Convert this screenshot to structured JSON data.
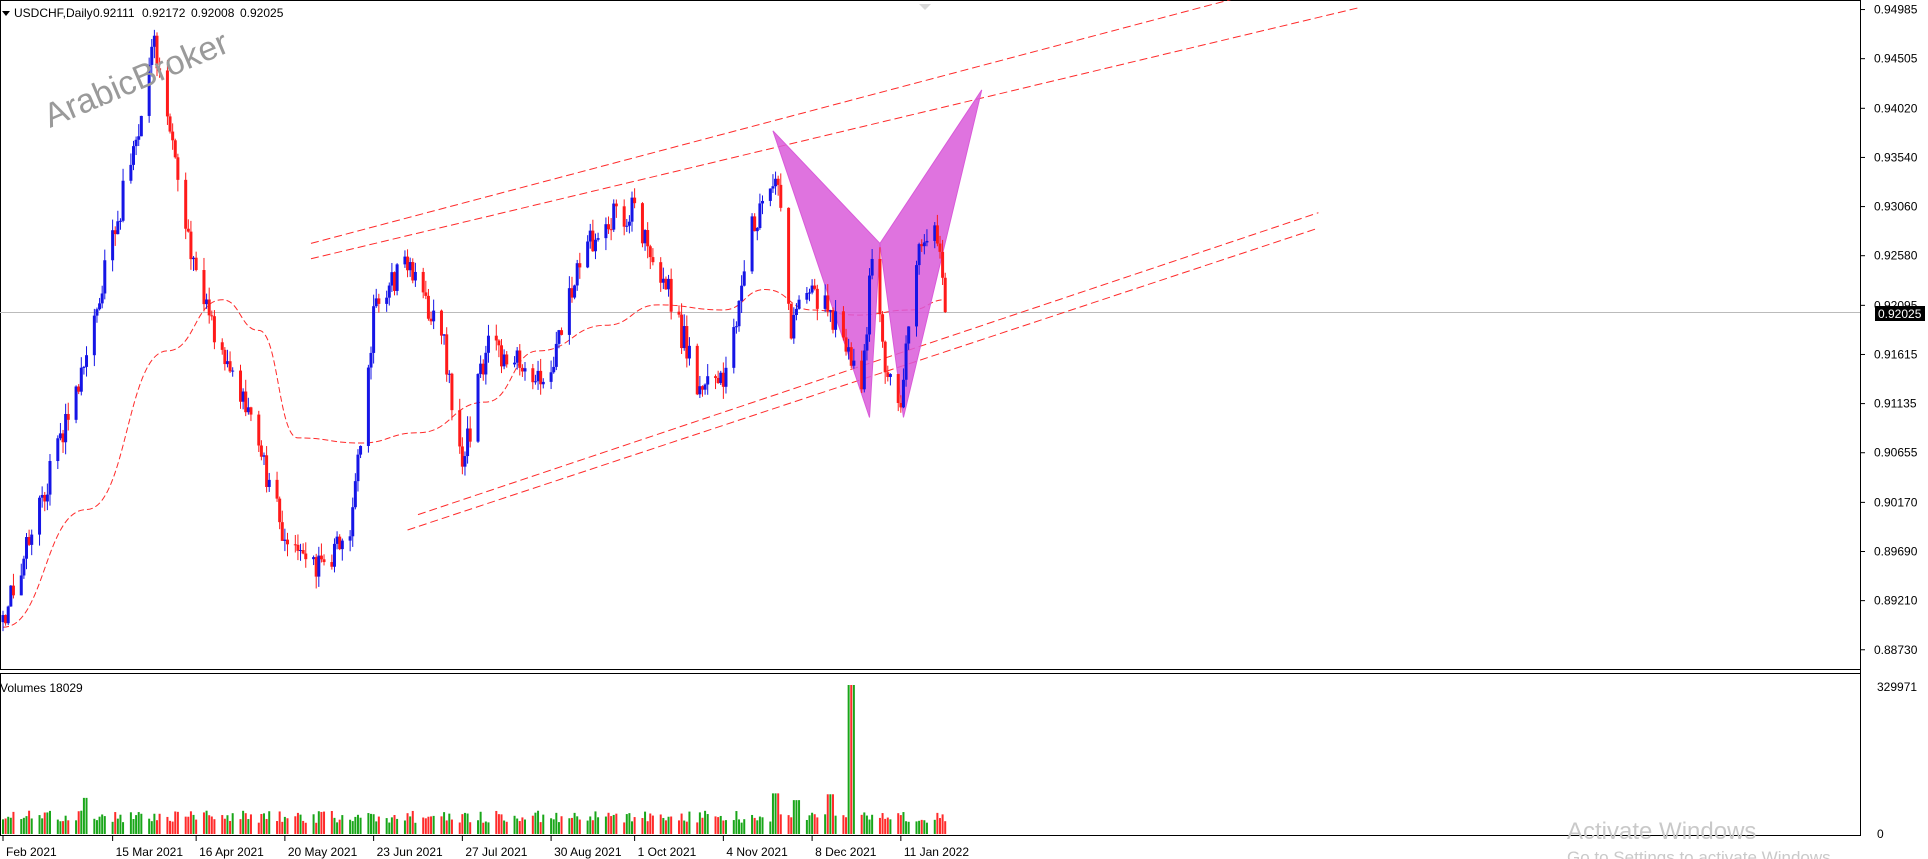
{
  "header": {
    "symbol": "USDCHF,Daily",
    "ohlc": [
      "0.92111",
      "0.92172",
      "0.92008",
      "0.92025"
    ]
  },
  "watermark": "ArabicBroker",
  "volume_panel": {
    "label": "Volumes 18029",
    "max_label": "329971",
    "zero_label": "0"
  },
  "activate": {
    "title": "Activate Windows",
    "subtitle": "Go to Settings to activate Windows."
  },
  "colors": {
    "bull": "#1515e6",
    "bear": "#ff1a1a",
    "ma": "#ff2a2a",
    "channel": "#ff2a2a",
    "pattern_fill": "#d95ad9",
    "vol_up": "#19a619",
    "vol_down": "#ff2a2a",
    "current_price_bg": "#000000"
  },
  "chart_data": {
    "type": "candlestick",
    "title": "USDCHF,Daily",
    "current_price": "0.92025",
    "ylim": [
      0.8863,
      0.95
    ],
    "y_ticks": [
      "0.94985",
      "0.94505",
      "0.94020",
      "0.93540",
      "0.93060",
      "0.92580",
      "0.92095",
      "0.91615",
      "0.91135",
      "0.90655",
      "0.90170",
      "0.89690",
      "0.89210",
      "0.88730"
    ],
    "x_ticks": [
      "Feb 2021",
      "15 Mar 2021",
      "16 Apr 2021",
      "20 May 2021",
      "23 Jun 2021",
      "27 Jul 2021",
      "30 Aug 2021",
      "1 Oct 2021",
      "4 Nov 2021",
      "8 Dec 2021",
      "11 Jan 2022"
    ],
    "anchors": [
      {
        "date": "2021-02-01",
        "price": 0.89
      },
      {
        "date": "2021-02-25",
        "price": 0.909
      },
      {
        "date": "2021-03-15",
        "price": 0.927
      },
      {
        "date": "2021-03-31",
        "price": 0.946
      },
      {
        "date": "2021-04-16",
        "price": 0.923
      },
      {
        "date": "2021-05-05",
        "price": 0.9105
      },
      {
        "date": "2021-05-20",
        "price": 0.8985
      },
      {
        "date": "2021-06-04",
        "price": 0.895
      },
      {
        "date": "2021-06-15",
        "price": 0.9
      },
      {
        "date": "2021-06-23",
        "price": 0.92
      },
      {
        "date": "2021-07-05",
        "price": 0.925
      },
      {
        "date": "2021-07-20",
        "price": 0.917
      },
      {
        "date": "2021-07-27",
        "price": 0.905
      },
      {
        "date": "2021-08-05",
        "price": 0.917
      },
      {
        "date": "2021-08-20",
        "price": 0.915
      },
      {
        "date": "2021-08-30",
        "price": 0.914
      },
      {
        "date": "2021-09-10",
        "price": 0.9255
      },
      {
        "date": "2021-09-24",
        "price": 0.93
      },
      {
        "date": "2021-10-01",
        "price": 0.93
      },
      {
        "date": "2021-10-12",
        "price": 0.924
      },
      {
        "date": "2021-10-26",
        "price": 0.9125
      },
      {
        "date": "2021-11-04",
        "price": 0.9135
      },
      {
        "date": "2021-11-15",
        "price": 0.9285
      },
      {
        "date": "2021-11-24",
        "price": 0.934
      },
      {
        "date": "2021-11-30",
        "price": 0.919
      },
      {
        "date": "2021-12-08",
        "price": 0.922
      },
      {
        "date": "2021-12-20",
        "price": 0.919
      },
      {
        "date": "2021-12-27",
        "price": 0.9115
      },
      {
        "date": "2021-12-31",
        "price": 0.926
      },
      {
        "date": "2022-01-05",
        "price": 0.914
      },
      {
        "date": "2022-01-11",
        "price": 0.912
      },
      {
        "date": "2022-01-18",
        "price": 0.926
      },
      {
        "date": "2022-01-24",
        "price": 0.93
      },
      {
        "date": "2022-01-28",
        "price": 0.9203
      }
    ],
    "moving_average": [
      {
        "date": "2021-02-01",
        "price": 0.8895
      },
      {
        "date": "2021-03-05",
        "price": 0.901
      },
      {
        "date": "2021-04-05",
        "price": 0.9165
      },
      {
        "date": "2021-04-26",
        "price": 0.9215
      },
      {
        "date": "2021-05-10",
        "price": 0.9185
      },
      {
        "date": "2021-05-25",
        "price": 0.908
      },
      {
        "date": "2021-06-18",
        "price": 0.9075
      },
      {
        "date": "2021-07-10",
        "price": 0.9085
      },
      {
        "date": "2021-08-05",
        "price": 0.9115
      },
      {
        "date": "2021-08-25",
        "price": 0.9165
      },
      {
        "date": "2021-09-20",
        "price": 0.919
      },
      {
        "date": "2021-10-10",
        "price": 0.921
      },
      {
        "date": "2021-11-04",
        "price": 0.9205
      },
      {
        "date": "2021-11-20",
        "price": 0.9225
      },
      {
        "date": "2021-12-08",
        "price": 0.9205
      },
      {
        "date": "2021-12-25",
        "price": 0.92
      },
      {
        "date": "2022-01-15",
        "price": 0.9205
      },
      {
        "date": "2022-01-28",
        "price": 0.9215
      }
    ],
    "channel_lines": [
      {
        "from": {
          "date": "2021-05-30",
          "price": 0.927
        },
        "to": {
          "date": "2022-05-20",
          "price": 0.951
        }
      },
      {
        "from": {
          "date": "2021-05-30",
          "price": 0.9255
        },
        "to": {
          "date": "2022-07-05",
          "price": 0.95
        }
      },
      {
        "from": {
          "date": "2021-07-10",
          "price": 0.9005
        },
        "to": {
          "date": "2022-06-20",
          "price": 0.93
        }
      },
      {
        "from": {
          "date": "2021-07-06",
          "price": 0.899
        },
        "to": {
          "date": "2022-06-20",
          "price": 0.9285
        }
      }
    ],
    "harmonic_pattern": {
      "type": "bearish butterfly",
      "X": {
        "date": "2021-11-23",
        "price": 0.938
      },
      "A": {
        "date": "2021-12-30",
        "price": 0.91
      },
      "B": {
        "date": "2022-01-03",
        "price": 0.927
      },
      "C": {
        "date": "2022-01-12",
        "price": 0.91
      },
      "D": {
        "date": "2022-02-11",
        "price": 0.942
      }
    },
    "volume": {
      "ylim": [
        0,
        329971
      ],
      "typical": 45000,
      "spikes": [
        {
          "date": "2021-03-05",
          "value": 80000
        },
        {
          "date": "2021-11-24",
          "value": 90000
        },
        {
          "date": "2021-12-02",
          "value": 75000
        },
        {
          "date": "2021-12-15",
          "value": 88000
        },
        {
          "date": "2021-12-23",
          "value": 329971
        }
      ]
    }
  }
}
